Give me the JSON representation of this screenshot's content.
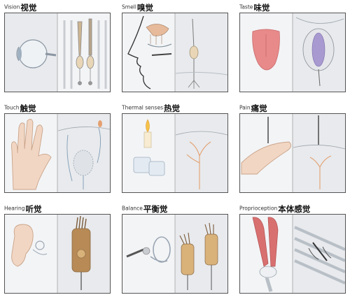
{
  "panels": [
    {
      "en": "Vision",
      "zh": "视觉",
      "icon": "eye-icon",
      "icon2": "photoreceptor-cells-icon"
    },
    {
      "en": "Smell",
      "zh": "嗅觉",
      "icon": "nose-profile-icon",
      "icon2": "olfactory-neuron-icon"
    },
    {
      "en": "Taste",
      "zh": "味觉",
      "icon": "tongue-icon",
      "icon2": "taste-bud-icon"
    },
    {
      "en": "Touch",
      "zh": "触觉",
      "icon": "hand-icon",
      "icon2": "touch-receptor-icon"
    },
    {
      "en": "Thermal senses",
      "zh": "热觉",
      "icon": "candle-ice-icon",
      "icon2": "thermal-nerve-endings-icon"
    },
    {
      "en": "Pain",
      "zh": "痛觉",
      "icon": "needle-finger-icon",
      "icon2": "pain-nerve-endings-icon"
    },
    {
      "en": "Hearing",
      "zh": "听觉",
      "icon": "ear-icon",
      "icon2": "hair-cell-icon"
    },
    {
      "en": "Balance",
      "zh": "平衡觉",
      "icon": "vestibular-icon",
      "icon2": "vestibular-hair-cells-icon"
    },
    {
      "en": "Proprioception",
      "zh": "本体感觉",
      "icon": "leg-muscles-icon",
      "icon2": "muscle-spindle-icon"
    }
  ],
  "colors": {
    "panel_bg": "#f3f4f6",
    "border": "#555555",
    "flesh": "#f2d6c4",
    "cell_tan": "#e9d6b6",
    "tongue": "#e88a8a",
    "muscle": "#d97070",
    "nerve": "#e4a070",
    "purple": "#a89ad0"
  }
}
